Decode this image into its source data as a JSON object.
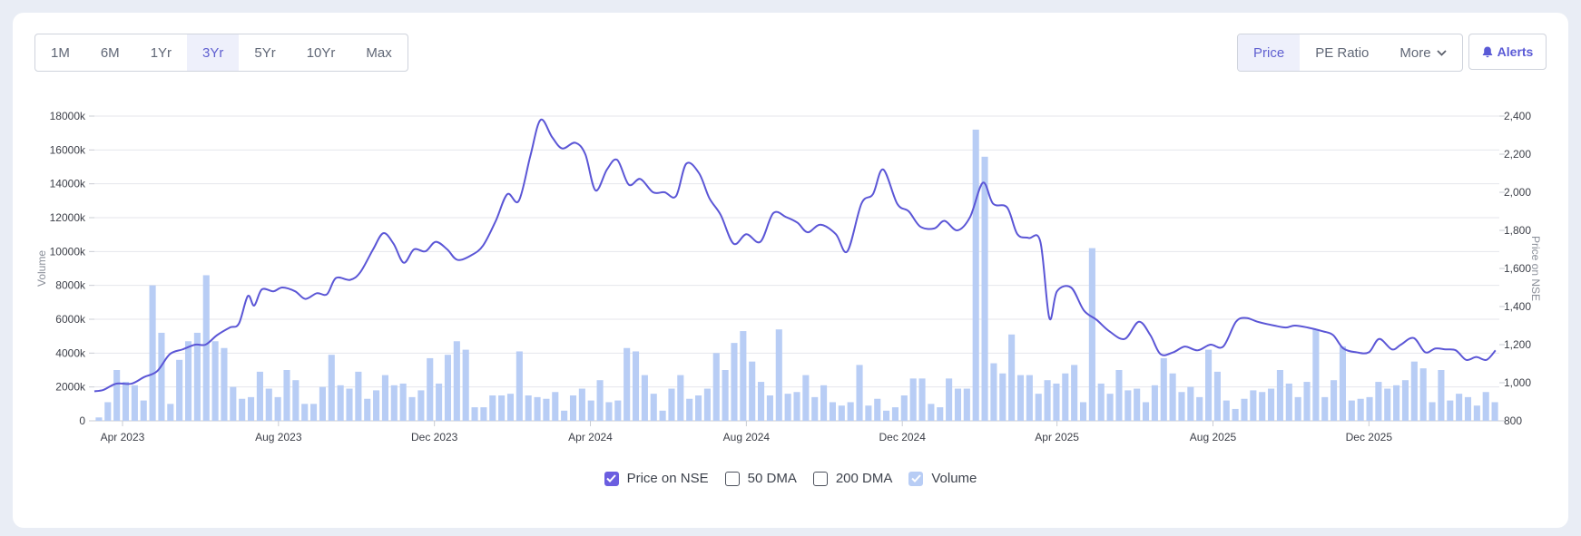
{
  "range_buttons": [
    {
      "label": "1M",
      "active": false
    },
    {
      "label": "6M",
      "active": false
    },
    {
      "label": "1Yr",
      "active": false
    },
    {
      "label": "3Yr",
      "active": true
    },
    {
      "label": "5Yr",
      "active": false
    },
    {
      "label": "10Yr",
      "active": false
    },
    {
      "label": "Max",
      "active": false
    }
  ],
  "metric_buttons": [
    {
      "label": "Price",
      "active": true
    },
    {
      "label": "PE Ratio",
      "active": false
    },
    {
      "label": "More",
      "active": false
    }
  ],
  "alerts_label": "Alerts",
  "legend": [
    {
      "label": "Price on NSE",
      "checked": true
    },
    {
      "label": "50 DMA",
      "checked": false
    },
    {
      "label": "200 DMA",
      "checked": false
    },
    {
      "label": "Volume",
      "checked": true
    }
  ],
  "colors": {
    "price_line": "#5b56d6",
    "volume_bar": "#b8cdf5",
    "accent": "#6b5ee0",
    "grid": "#e4e6eb"
  },
  "chart_data": {
    "type": "line+bar",
    "xlabel": "",
    "ylabel_left": "Volume",
    "ylabel_right": "Price on NSE",
    "x_range": [
      "2023-03-10",
      "2026-03-13"
    ],
    "y_left_range": [
      0,
      18000
    ],
    "y_left_ticks": [
      "0",
      "2000k",
      "4000k",
      "6000k",
      "8000k",
      "10000k",
      "12000k",
      "14000k",
      "16000k",
      "18000k"
    ],
    "y_right_range": [
      800,
      2400
    ],
    "y_right_ticks": [
      "800",
      "1,000",
      "1,200",
      "1,400",
      "1,600",
      "1,800",
      "2,000",
      "2,200",
      "2,400"
    ],
    "x_ticks": [
      {
        "label": "Apr 2023",
        "date": "2023-04-01"
      },
      {
        "label": "Aug 2023",
        "date": "2023-08-01"
      },
      {
        "label": "Dec 2023",
        "date": "2023-12-01"
      },
      {
        "label": "Apr 2024",
        "date": "2024-04-01"
      },
      {
        "label": "Aug 2024",
        "date": "2024-08-01"
      },
      {
        "label": "Dec 2024",
        "date": "2024-12-01"
      },
      {
        "label": "Apr 2025",
        "date": "2025-04-01"
      },
      {
        "label": "Aug 2025",
        "date": "2025-08-01"
      },
      {
        "label": "Dec 2025",
        "date": "2025-12-01"
      }
    ],
    "grid": true,
    "legend_position": "bottom",
    "series": [
      {
        "name": "Price on NSE",
        "type": "line",
        "axis": "right",
        "points": [
          [
            "2023-03-10",
            955
          ],
          [
            "2023-03-17",
            962
          ],
          [
            "2023-03-27",
            995
          ],
          [
            "2023-04-08",
            995
          ],
          [
            "2023-04-18",
            1030
          ],
          [
            "2023-04-28",
            1060
          ],
          [
            "2023-05-08",
            1150
          ],
          [
            "2023-05-18",
            1175
          ],
          [
            "2023-05-28",
            1200
          ],
          [
            "2023-06-05",
            1200
          ],
          [
            "2023-06-14",
            1250
          ],
          [
            "2023-06-24",
            1290
          ],
          [
            "2023-07-01",
            1310
          ],
          [
            "2023-07-08",
            1455
          ],
          [
            "2023-07-13",
            1405
          ],
          [
            "2023-07-19",
            1490
          ],
          [
            "2023-07-28",
            1480
          ],
          [
            "2023-08-04",
            1500
          ],
          [
            "2023-08-14",
            1480
          ],
          [
            "2023-08-22",
            1440
          ],
          [
            "2023-08-31",
            1470
          ],
          [
            "2023-09-08",
            1465
          ],
          [
            "2023-09-15",
            1550
          ],
          [
            "2023-09-26",
            1540
          ],
          [
            "2023-10-04",
            1580
          ],
          [
            "2023-10-14",
            1700
          ],
          [
            "2023-10-22",
            1785
          ],
          [
            "2023-10-30",
            1730
          ],
          [
            "2023-11-07",
            1630
          ],
          [
            "2023-11-15",
            1700
          ],
          [
            "2023-11-24",
            1690
          ],
          [
            "2023-12-02",
            1740
          ],
          [
            "2023-12-11",
            1700
          ],
          [
            "2023-12-19",
            1645
          ],
          [
            "2023-12-30",
            1670
          ],
          [
            "2024-01-08",
            1720
          ],
          [
            "2024-01-18",
            1850
          ],
          [
            "2024-01-27",
            1990
          ],
          [
            "2024-02-05",
            1955
          ],
          [
            "2024-02-14",
            2190
          ],
          [
            "2024-02-22",
            2380
          ],
          [
            "2024-03-02",
            2290
          ],
          [
            "2024-03-10",
            2230
          ],
          [
            "2024-03-20",
            2260
          ],
          [
            "2024-03-28",
            2200
          ],
          [
            "2024-04-05",
            2010
          ],
          [
            "2024-04-14",
            2120
          ],
          [
            "2024-04-22",
            2170
          ],
          [
            "2024-05-01",
            2040
          ],
          [
            "2024-05-10",
            2070
          ],
          [
            "2024-05-20",
            2000
          ],
          [
            "2024-05-29",
            2000
          ],
          [
            "2024-06-07",
            1980
          ],
          [
            "2024-06-15",
            2150
          ],
          [
            "2024-06-25",
            2100
          ],
          [
            "2024-07-03",
            1970
          ],
          [
            "2024-07-12",
            1880
          ],
          [
            "2024-07-22",
            1730
          ],
          [
            "2024-08-01",
            1780
          ],
          [
            "2024-08-12",
            1740
          ],
          [
            "2024-08-22",
            1890
          ],
          [
            "2024-09-01",
            1870
          ],
          [
            "2024-09-10",
            1840
          ],
          [
            "2024-09-18",
            1790
          ],
          [
            "2024-09-28",
            1830
          ],
          [
            "2024-10-10",
            1780
          ],
          [
            "2024-10-19",
            1690
          ],
          [
            "2024-10-30",
            1940
          ],
          [
            "2024-11-08",
            1990
          ],
          [
            "2024-11-16",
            2120
          ],
          [
            "2024-11-27",
            1940
          ],
          [
            "2024-12-06",
            1900
          ],
          [
            "2024-12-15",
            1820
          ],
          [
            "2024-12-26",
            1810
          ],
          [
            "2025-01-03",
            1850
          ],
          [
            "2025-01-13",
            1800
          ],
          [
            "2025-01-23",
            1870
          ],
          [
            "2025-02-02",
            2050
          ],
          [
            "2025-02-10",
            1940
          ],
          [
            "2025-02-21",
            1920
          ],
          [
            "2025-03-01",
            1780
          ],
          [
            "2025-03-10",
            1760
          ],
          [
            "2025-03-19",
            1740
          ],
          [
            "2025-03-26",
            1340
          ],
          [
            "2025-04-01",
            1480
          ],
          [
            "2025-04-12",
            1500
          ],
          [
            "2025-04-22",
            1380
          ],
          [
            "2025-05-02",
            1330
          ],
          [
            "2025-05-12",
            1270
          ],
          [
            "2025-05-24",
            1230
          ],
          [
            "2025-06-04",
            1320
          ],
          [
            "2025-06-13",
            1250
          ],
          [
            "2025-06-21",
            1150
          ],
          [
            "2025-07-01",
            1160
          ],
          [
            "2025-07-10",
            1190
          ],
          [
            "2025-07-20",
            1170
          ],
          [
            "2025-07-30",
            1200
          ],
          [
            "2025-08-09",
            1190
          ],
          [
            "2025-08-19",
            1320
          ],
          [
            "2025-08-27",
            1340
          ],
          [
            "2025-09-05",
            1320
          ],
          [
            "2025-09-18",
            1300
          ],
          [
            "2025-09-27",
            1290
          ],
          [
            "2025-10-04",
            1300
          ],
          [
            "2025-10-14",
            1290
          ],
          [
            "2025-10-26",
            1270
          ],
          [
            "2025-11-03",
            1250
          ],
          [
            "2025-11-11",
            1180
          ],
          [
            "2025-11-21",
            1160
          ],
          [
            "2025-12-01",
            1160
          ],
          [
            "2025-12-09",
            1230
          ],
          [
            "2025-12-19",
            1175
          ],
          [
            "2025-12-26",
            1200
          ],
          [
            "2026-01-05",
            1235
          ],
          [
            "2026-01-14",
            1160
          ],
          [
            "2026-01-22",
            1180
          ],
          [
            "2026-01-30",
            1175
          ],
          [
            "2026-02-07",
            1170
          ],
          [
            "2026-02-15",
            1120
          ],
          [
            "2026-02-23",
            1135
          ],
          [
            "2026-03-03",
            1120
          ],
          [
            "2026-03-10",
            1170
          ]
        ]
      },
      {
        "name": "Volume",
        "type": "bar",
        "axis": "left",
        "values_k": [
          200,
          1100,
          3000,
          2300,
          2100,
          1200,
          8000,
          5200,
          1000,
          3600,
          4700,
          5200,
          8600,
          4700,
          4300,
          2000,
          1300,
          1400,
          2900,
          1900,
          1400,
          3000,
          2400,
          1000,
          1000,
          2000,
          3900,
          2100,
          1900,
          2900,
          1300,
          1800,
          2700,
          2100,
          2200,
          1400,
          1800,
          3700,
          2200,
          3900,
          4700,
          4200,
          800,
          800,
          1500,
          1500,
          1600,
          4100,
          1500,
          1400,
          1300,
          1700,
          600,
          1500,
          1900,
          1200,
          2400,
          1100,
          1200,
          4300,
          4100,
          2700,
          1600,
          600,
          1900,
          2700,
          1300,
          1500,
          1900,
          4000,
          3000,
          4600,
          5300,
          3500,
          2300,
          1500,
          5400,
          1600,
          1700,
          2700,
          1400,
          2100,
          1100,
          900,
          1100,
          3300,
          900,
          1300,
          600,
          800,
          1500,
          2500,
          2500,
          1000,
          800,
          2500,
          1900,
          1900,
          17200,
          15600,
          3400,
          2800,
          5100,
          2700,
          2700,
          1600,
          2400,
          2200,
          2800,
          3300,
          1100,
          10200,
          2200,
          1600,
          3000,
          1800,
          1900,
          1100,
          2100,
          3700,
          2800,
          1700,
          2000,
          1400,
          4200,
          2900,
          1200,
          700,
          1300,
          1800,
          1700,
          1900,
          3000,
          2200,
          1400,
          2300,
          5400,
          1400,
          2400,
          4400,
          1200,
          1300,
          1400,
          2300,
          1900,
          2100,
          2400,
          3500,
          3100,
          1100,
          3000,
          1200,
          1600,
          1400,
          900,
          1700,
          1100
        ]
      }
    ]
  }
}
